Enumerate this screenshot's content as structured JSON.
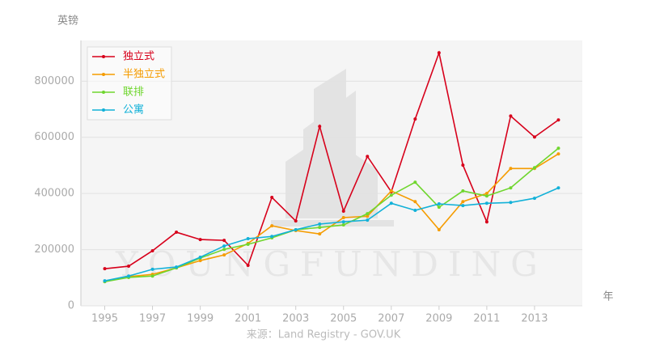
{
  "chart_data": {
    "type": "line",
    "y_label": "英镑",
    "x_label": "年",
    "source": "来源：Land Registry - GOV.UK",
    "watermark": "YOUNGFUNDING",
    "x": [
      1995,
      1996,
      1997,
      1998,
      1999,
      2000,
      2001,
      2002,
      2003,
      2004,
      2005,
      2006,
      2007,
      2008,
      2009,
      2010,
      2011,
      2012,
      2013,
      2014
    ],
    "series": [
      {
        "name": "独立式",
        "color": "#d7001b",
        "values": [
          132000,
          141000,
          196000,
          262000,
          236000,
          233000,
          144000,
          386000,
          302000,
          639000,
          337000,
          532000,
          406000,
          665000,
          901000,
          501000,
          299000,
          676000,
          601000,
          662000
        ]
      },
      {
        "name": "半独立式",
        "color": "#f59c00",
        "values": [
          86000,
          104000,
          112000,
          135000,
          161000,
          181000,
          222000,
          285000,
          268000,
          256000,
          314000,
          319000,
          409000,
          371000,
          271000,
          371000,
          400000,
          489000,
          489000,
          541000
        ]
      },
      {
        "name": "联排",
        "color": "#6fd62e",
        "values": [
          86000,
          101000,
          106000,
          135000,
          170000,
          201000,
          219000,
          242000,
          271000,
          279000,
          288000,
          328000,
          394000,
          440000,
          351000,
          409000,
          391000,
          420000,
          492000,
          561000
        ]
      },
      {
        "name": "公寓",
        "color": "#12b1d8",
        "values": [
          89000,
          106000,
          130000,
          138000,
          173000,
          213000,
          239000,
          247000,
          271000,
          291000,
          299000,
          305000,
          365000,
          340000,
          363000,
          357000,
          365000,
          368000,
          383000,
          420000
        ]
      }
    ],
    "xlim": [
      1994,
      2015
    ],
    "ylim": [
      0,
      945000
    ],
    "xticks": [
      1995,
      1997,
      1999,
      2001,
      2003,
      2005,
      2007,
      2009,
      2011,
      2013
    ],
    "yticks": [
      0,
      200000,
      400000,
      600000,
      800000
    ],
    "grid": true,
    "legend": "top-left"
  }
}
